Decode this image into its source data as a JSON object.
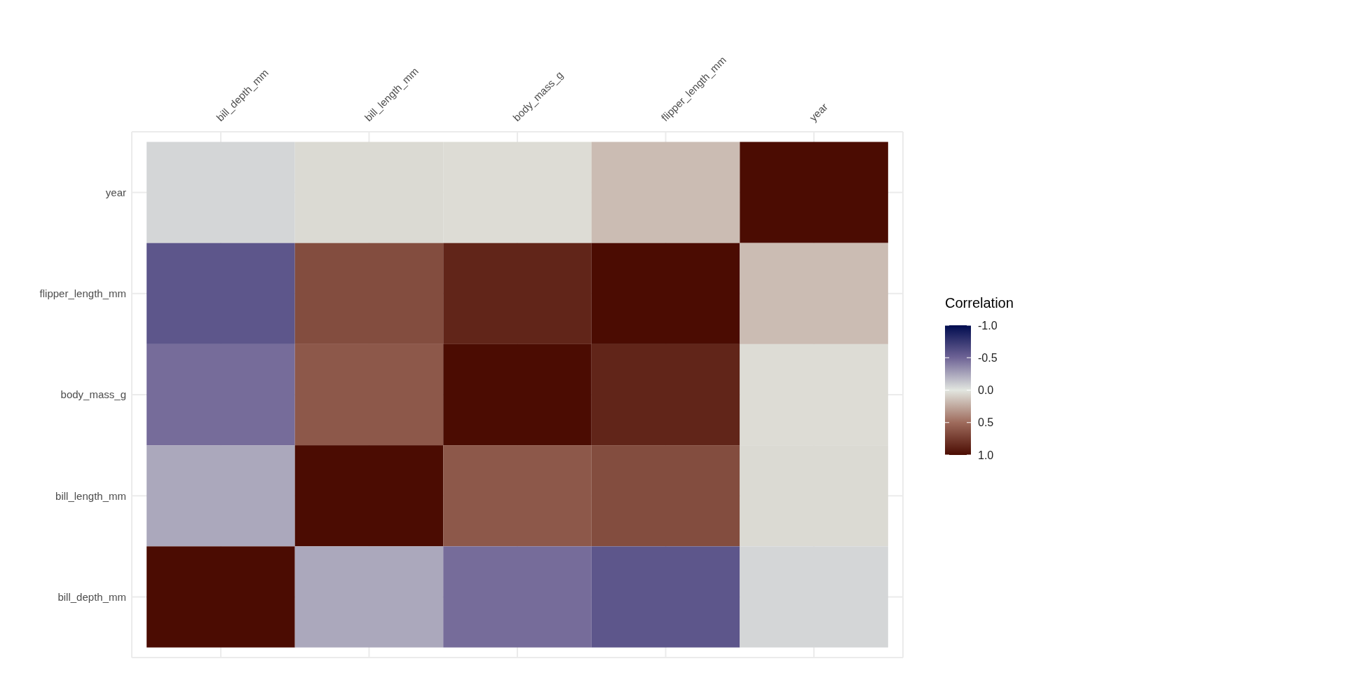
{
  "chart_data": {
    "type": "heatmap",
    "categories": [
      "bill_depth_mm",
      "bill_length_mm",
      "body_mass_g",
      "flipper_length_mm",
      "year"
    ],
    "y_categories": [
      "year",
      "flipper_length_mm",
      "body_mass_g",
      "bill_length_mm",
      "bill_depth_mm"
    ],
    "cells": [
      [
        -0.06,
        0.05,
        0.04,
        0.17,
        1
      ],
      [
        -0.58,
        0.66,
        0.87,
        1,
        0.17
      ],
      [
        -0.47,
        0.6,
        1,
        0.87,
        0.04
      ],
      [
        -0.24,
        1,
        0.6,
        0.66,
        0.05
      ],
      [
        1,
        -0.24,
        -0.47,
        -0.58,
        -0.06
      ]
    ],
    "legend_title": "Correlation",
    "clim": [
      -1,
      1
    ],
    "cticks": [
      {
        "value": -1,
        "label": "-1.0"
      },
      {
        "value": -0.5,
        "label": "-0.5"
      },
      {
        "value": 0,
        "label": "0.0"
      },
      {
        "value": 0.5,
        "label": "0.5"
      },
      {
        "value": 1,
        "label": "1.0"
      }
    ],
    "grid": true
  }
}
